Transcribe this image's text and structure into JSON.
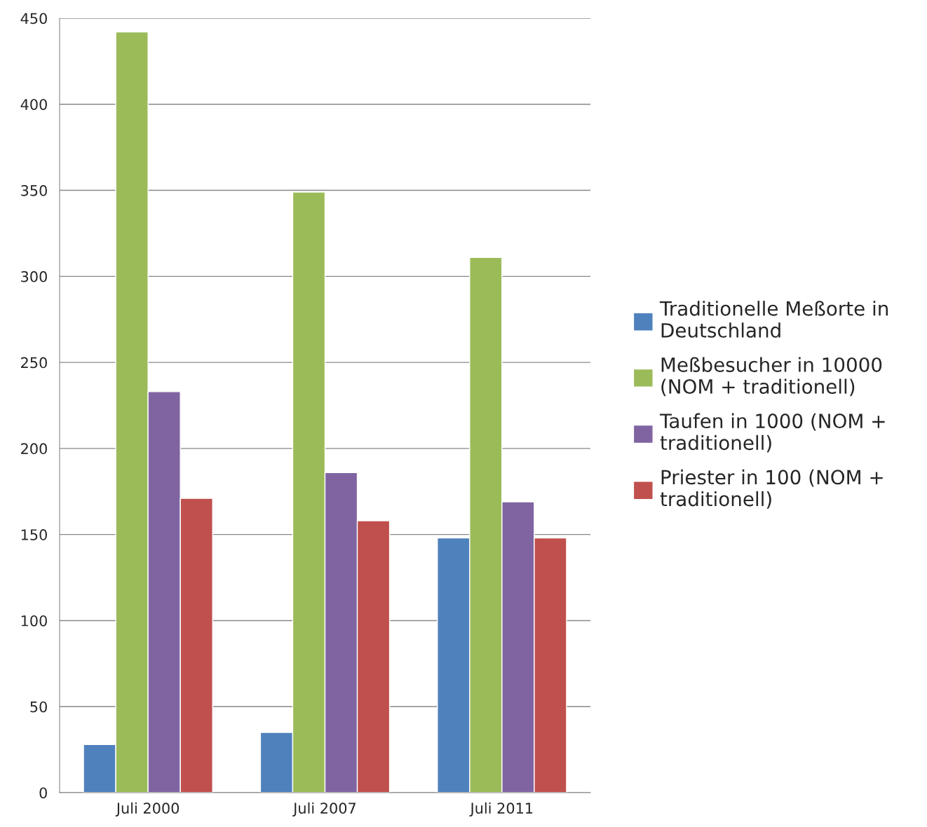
{
  "chart_data": {
    "type": "bar",
    "categories": [
      "Juli 2000",
      "Juli 2007",
      "Juli 2011"
    ],
    "series": [
      {
        "name": "Traditionelle Meßorte in Deutschland",
        "color": "#4f81bd",
        "values": [
          28,
          35,
          148
        ]
      },
      {
        "name": "Meßbesucher in 10000 (NOM + traditionell)",
        "color": "#9bbb59",
        "values": [
          442,
          349,
          311
        ]
      },
      {
        "name": "Taufen in 1000 (NOM + traditionell)",
        "color": "#8064a2",
        "values": [
          233,
          186,
          169
        ]
      },
      {
        "name": "Priester in 100 (NOM + traditionell)",
        "color": "#c0504d",
        "values": [
          171,
          158,
          148
        ]
      }
    ],
    "ylim": [
      0,
      450
    ],
    "yticks": [
      0,
      50,
      100,
      150,
      200,
      250,
      300,
      350,
      400,
      450
    ],
    "grid": "y",
    "legend": "right"
  }
}
